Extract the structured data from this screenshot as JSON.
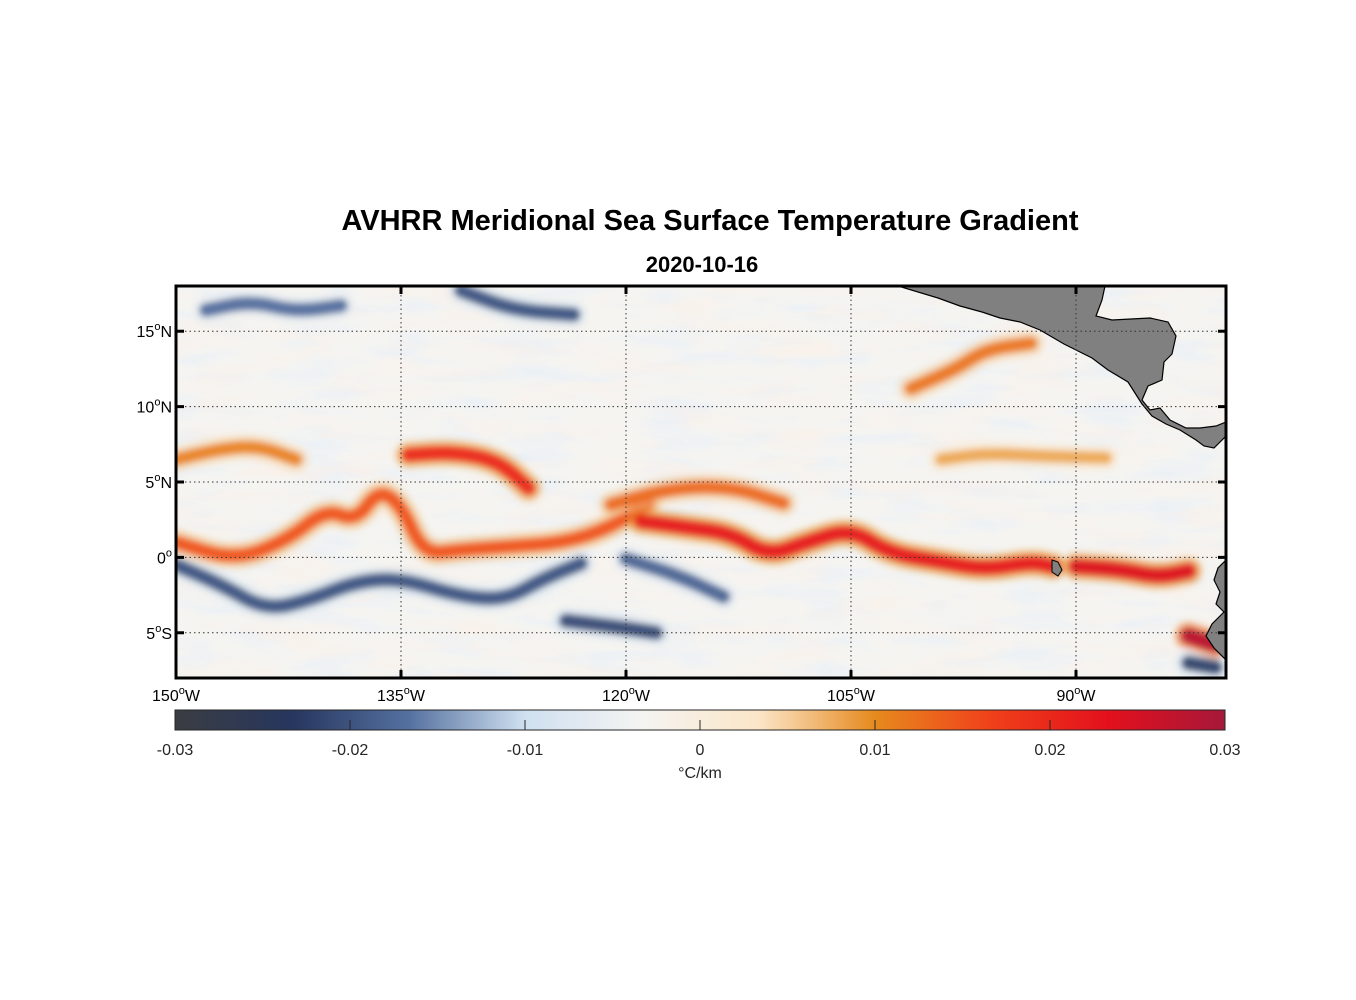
{
  "title": "AVHRR Meridional Sea Surface Temperature Gradient",
  "date": "2020-10-16",
  "map": {
    "lon_range": [
      -150,
      -80
    ],
    "lat_range": [
      -8,
      18
    ],
    "lon_ticks": [
      {
        "value": -150,
        "deg": "150",
        "suffix": "W"
      },
      {
        "value": -135,
        "deg": "135",
        "suffix": "W"
      },
      {
        "value": -120,
        "deg": "120",
        "suffix": "W"
      },
      {
        "value": -105,
        "deg": "105",
        "suffix": "W"
      },
      {
        "value": -90,
        "deg": "90",
        "suffix": "W"
      }
    ],
    "lat_ticks": [
      {
        "value": 15,
        "deg": "15",
        "suffix": "N"
      },
      {
        "value": 10,
        "deg": "10",
        "suffix": "N"
      },
      {
        "value": 5,
        "deg": "5",
        "suffix": "N"
      },
      {
        "value": 0,
        "deg": "0",
        "suffix": ""
      },
      {
        "value": -5,
        "deg": "5",
        "suffix": "S"
      }
    ],
    "grid": "dotted",
    "land_color": "#808080"
  },
  "colorbar": {
    "min": -0.03,
    "max": 0.03,
    "ticks": [
      "-0.03",
      "-0.02",
      "-0.01",
      "0",
      "0.01",
      "0.02",
      "0.03"
    ],
    "unit": "°C/km",
    "colors": [
      "#3b3d42",
      "#26365e",
      "#54709f",
      "#cfe0f0",
      "#f4f4f2",
      "#fbe6c8",
      "#e68a1e",
      "#f0401a",
      "#e3101c",
      "#a6183a"
    ]
  },
  "features": {
    "positive_fronts": [
      {
        "name": "northern-equatorial-front",
        "points": [
          [
            -150,
            6.5
          ],
          [
            -147,
            7.2
          ],
          [
            -144.5,
            7.4
          ],
          [
            -142,
            6.5
          ]
        ],
        "value": 0.011
      },
      {
        "name": "equatorial-front-west",
        "points": [
          [
            -150,
            1.0
          ],
          [
            -146,
            -0.2
          ],
          [
            -142.5,
            1.2
          ],
          [
            -140,
            3.2
          ],
          [
            -138,
            2.4
          ],
          [
            -136.5,
            4.5
          ],
          [
            -135,
            3.5
          ],
          [
            -133.5,
            0.2
          ],
          [
            -131,
            0.5
          ],
          [
            -128,
            0.7
          ],
          [
            -124,
            1.0
          ],
          [
            -121,
            2.0
          ],
          [
            -118.5,
            3.6
          ]
        ],
        "value": 0.015
      },
      {
        "name": "equatorial-front-north-loop",
        "points": [
          [
            -121,
            3.5
          ],
          [
            -117,
            4.6
          ],
          [
            -113,
            4.7
          ],
          [
            -109.5,
            3.6
          ]
        ],
        "value": 0.013
      },
      {
        "name": "equatorial-front-central",
        "points": [
          [
            -119,
            2.4
          ],
          [
            -116,
            2.0
          ],
          [
            -113,
            1.6
          ],
          [
            -110.5,
            0.1
          ],
          [
            -108,
            1.0
          ],
          [
            -105,
            1.9
          ],
          [
            -102.5,
            0.3
          ],
          [
            -99,
            -0.3
          ],
          [
            -96,
            -0.8
          ],
          [
            -93,
            -0.3
          ],
          [
            -91.5,
            -0.6
          ]
        ],
        "value": 0.022
      },
      {
        "name": "tiw-crest-north",
        "points": [
          [
            -134.5,
            6.8
          ],
          [
            -131.5,
            7.0
          ],
          [
            -128.5,
            6.4
          ],
          [
            -126.5,
            4.6
          ]
        ],
        "value": 0.02
      },
      {
        "name": "galapagos-east-front",
        "points": [
          [
            -90,
            -0.6
          ],
          [
            -87,
            -0.8
          ],
          [
            -84.5,
            -1.3
          ],
          [
            -82.5,
            -0.9
          ]
        ],
        "value": 0.024
      },
      {
        "name": "peru-coast-front",
        "points": [
          [
            -82.5,
            -5.2
          ],
          [
            -80.7,
            -5.8
          ]
        ],
        "value": 0.028
      },
      {
        "name": "mexico-coast-front",
        "points": [
          [
            -101,
            11.2
          ],
          [
            -98,
            12.5
          ],
          [
            -96,
            13.8
          ],
          [
            -93,
            14.2
          ]
        ],
        "value": 0.012
      },
      {
        "name": "panama-bight-front",
        "points": [
          [
            -99,
            6.5
          ],
          [
            -96,
            6.9
          ],
          [
            -92,
            6.7
          ],
          [
            -88,
            6.6
          ]
        ],
        "value": 0.008
      }
    ],
    "negative_fronts": [
      {
        "name": "south-equatorial-band-west",
        "points": [
          [
            -150,
            -0.5
          ],
          [
            -147,
            -1.8
          ],
          [
            -144,
            -3.5
          ],
          [
            -141,
            -2.8
          ],
          [
            -138,
            -1.6
          ],
          [
            -135,
            -1.4
          ],
          [
            -131,
            -2.6
          ],
          [
            -128,
            -2.8
          ],
          [
            -125.5,
            -1.4
          ],
          [
            -123,
            -0.4
          ]
        ],
        "value": -0.02
      },
      {
        "name": "south-equatorial-band-east",
        "points": [
          [
            -120,
            -0.1
          ],
          [
            -116.5,
            -1.2
          ],
          [
            -113.5,
            -2.6
          ]
        ],
        "value": -0.018
      },
      {
        "name": "south-trough",
        "points": [
          [
            -124,
            -4.2
          ],
          [
            -120,
            -4.7
          ],
          [
            -118,
            -5.0
          ]
        ],
        "value": -0.021
      },
      {
        "name": "north-west-trough",
        "points": [
          [
            -148,
            16.4
          ],
          [
            -145,
            17.0
          ],
          [
            -142,
            16.3
          ],
          [
            -139,
            16.7
          ]
        ],
        "value": -0.017
      },
      {
        "name": "north-central-trough",
        "points": [
          [
            -131,
            17.7
          ],
          [
            -127.5,
            16.4
          ],
          [
            -123.5,
            16.1
          ]
        ],
        "value": -0.02
      },
      {
        "name": "ecuador-coast-trough",
        "points": [
          [
            -82.5,
            -7.0
          ],
          [
            -80.7,
            -7.3
          ]
        ],
        "value": -0.022
      }
    ]
  }
}
